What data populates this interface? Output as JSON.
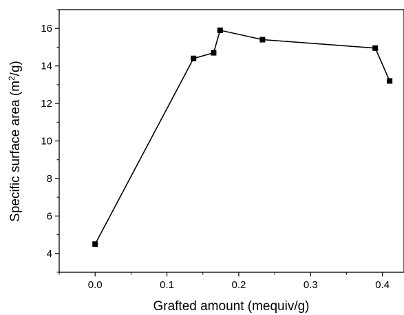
{
  "chart_data": {
    "type": "line",
    "title": "",
    "xlabel": "Grafted amount (mequiv/g)",
    "ylabel_main": "Specific surface area (m",
    "ylabel_sup": "2",
    "ylabel_tail": "/g)",
    "xlim": [
      -0.05,
      0.43
    ],
    "ylim": [
      3,
      17
    ],
    "xticks": [
      0.0,
      0.1,
      0.2,
      0.3,
      0.4
    ],
    "xtick_labels": [
      "0.0",
      "0.1",
      "0.2",
      "0.3",
      "0.4"
    ],
    "yticks": [
      4,
      6,
      8,
      10,
      12,
      14,
      16
    ],
    "ytick_labels": [
      "4",
      "6",
      "8",
      "10",
      "12",
      "14",
      "16"
    ],
    "grid": false,
    "series": [
      {
        "marker": "square",
        "color": "#000000",
        "x": [
          0.0,
          0.137,
          0.165,
          0.174,
          0.233,
          0.39,
          0.41
        ],
        "y": [
          4.5,
          14.4,
          14.7,
          15.9,
          15.4,
          14.95,
          13.2
        ]
      }
    ]
  }
}
